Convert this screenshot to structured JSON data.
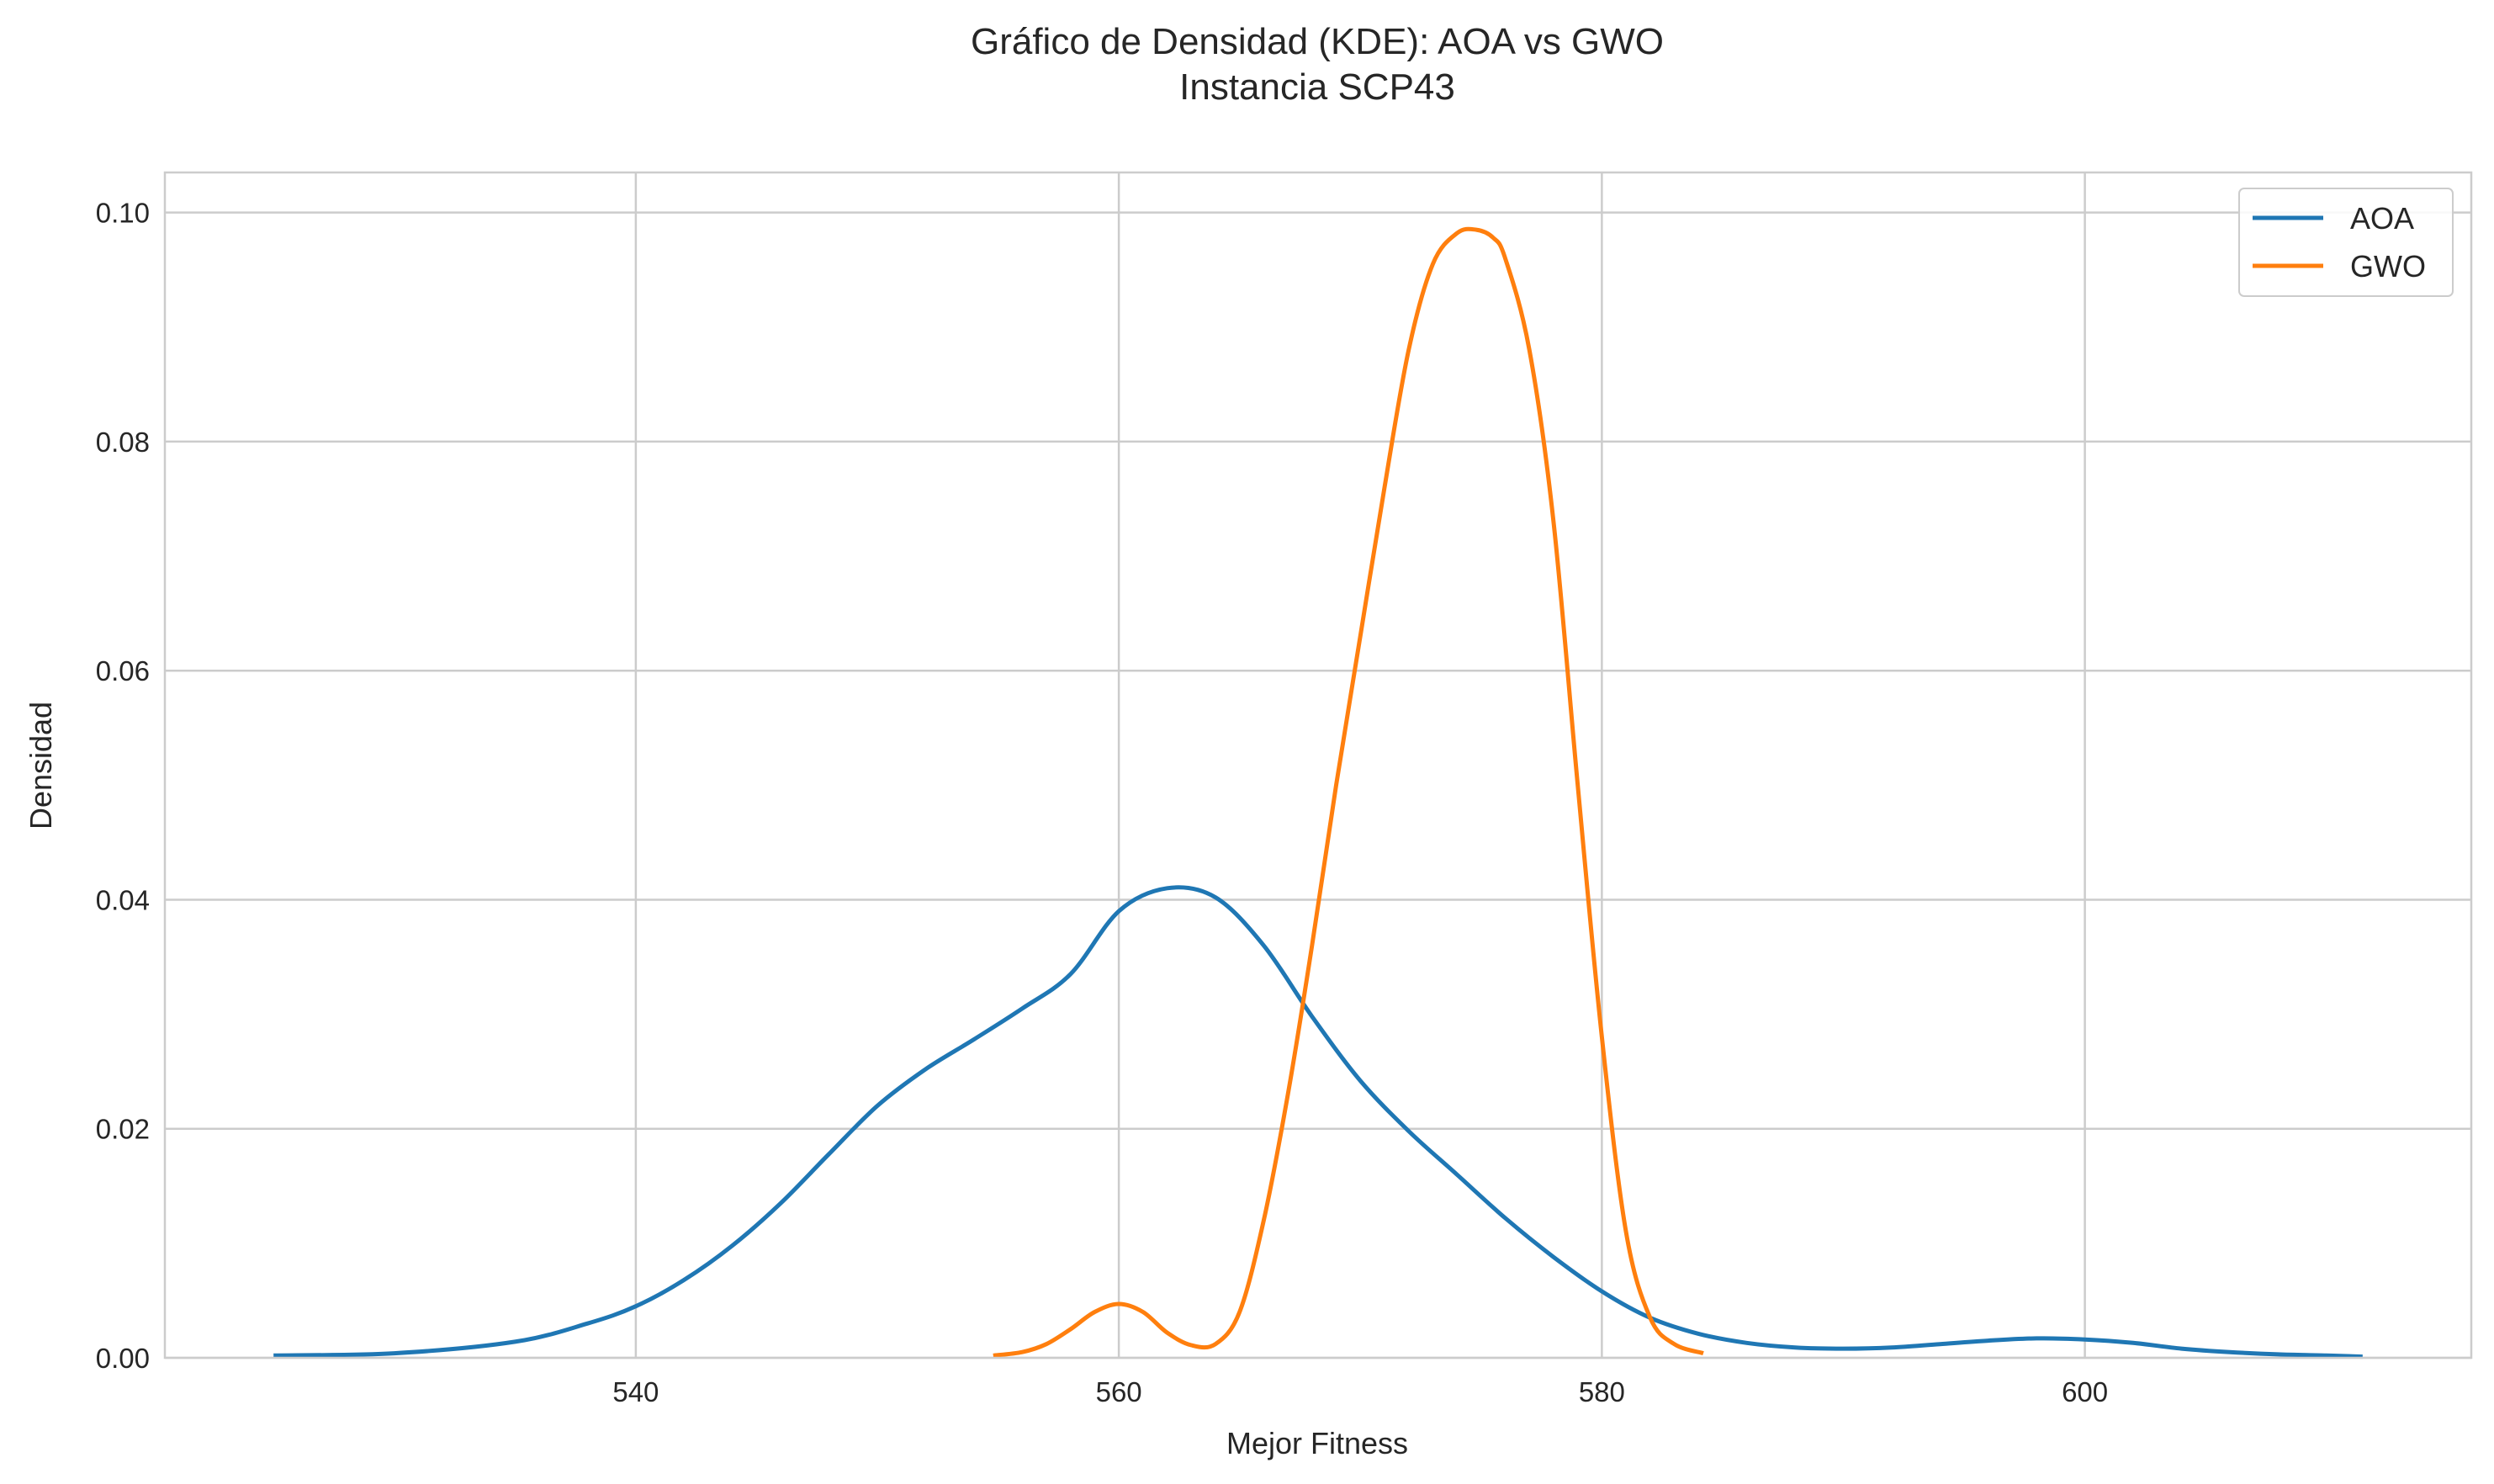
{
  "chart_data": {
    "type": "line",
    "title": "Gráfico de Densidad (KDE): AOA vs GWO",
    "subtitle": "Instancia SCP43",
    "xlabel": "Mejor Fitness",
    "ylabel": "Densidad",
    "xlim": [
      520.5,
      616
    ],
    "ylim": [
      0,
      0.1035
    ],
    "xticks": [
      540,
      560,
      580,
      600
    ],
    "xtick_labels": [
      "540",
      "560",
      "580",
      "600"
    ],
    "yticks": [
      0,
      0.02,
      0.04,
      0.06,
      0.08,
      0.1
    ],
    "ytick_labels": [
      "0.00",
      "0.02",
      "0.04",
      "0.06",
      "0.08",
      "0.10"
    ],
    "grid": true,
    "legend_position": "top-right",
    "series": [
      {
        "name": "AOA",
        "color": "#1f77b4",
        "x": [
          525,
          530,
          535,
          538,
          540,
          542,
          544,
          546,
          548,
          550,
          552,
          554,
          556,
          558,
          560,
          562,
          564,
          566,
          568,
          570,
          572,
          574,
          576,
          578,
          580,
          582,
          584,
          586,
          588,
          590,
          592,
          594,
          596,
          598,
          600,
          602,
          604,
          606,
          608,
          610,
          611.5
        ],
        "y": [
          0.0002,
          0.0004,
          0.0014,
          0.003,
          0.0045,
          0.0068,
          0.0098,
          0.0135,
          0.0178,
          0.022,
          0.0252,
          0.0278,
          0.0305,
          0.0335,
          0.039,
          0.041,
          0.0402,
          0.036,
          0.0298,
          0.0242,
          0.0198,
          0.016,
          0.0122,
          0.0088,
          0.0058,
          0.0035,
          0.0021,
          0.0013,
          0.0009,
          0.0008,
          0.0009,
          0.0012,
          0.0015,
          0.0017,
          0.0016,
          0.0013,
          0.0008,
          0.0005,
          0.0003,
          0.0002,
          0.0001
        ]
      },
      {
        "name": "GWO",
        "color": "#ff7f0e",
        "x": [
          554.8,
          556,
          557,
          558,
          559,
          560,
          561,
          562,
          563,
          564,
          565,
          566,
          567,
          568,
          569,
          570,
          571,
          572,
          573,
          574,
          574.8,
          575.5,
          576,
          577,
          578,
          579,
          580,
          581,
          582,
          583,
          584.2
        ],
        "y": [
          0.0002,
          0.0005,
          0.0012,
          0.0025,
          0.004,
          0.0047,
          0.004,
          0.0022,
          0.0011,
          0.0012,
          0.004,
          0.012,
          0.023,
          0.036,
          0.05,
          0.063,
          0.076,
          0.088,
          0.0955,
          0.0982,
          0.0985,
          0.0978,
          0.096,
          0.088,
          0.073,
          0.05,
          0.028,
          0.011,
          0.0035,
          0.0012,
          0.0004
        ]
      }
    ]
  }
}
